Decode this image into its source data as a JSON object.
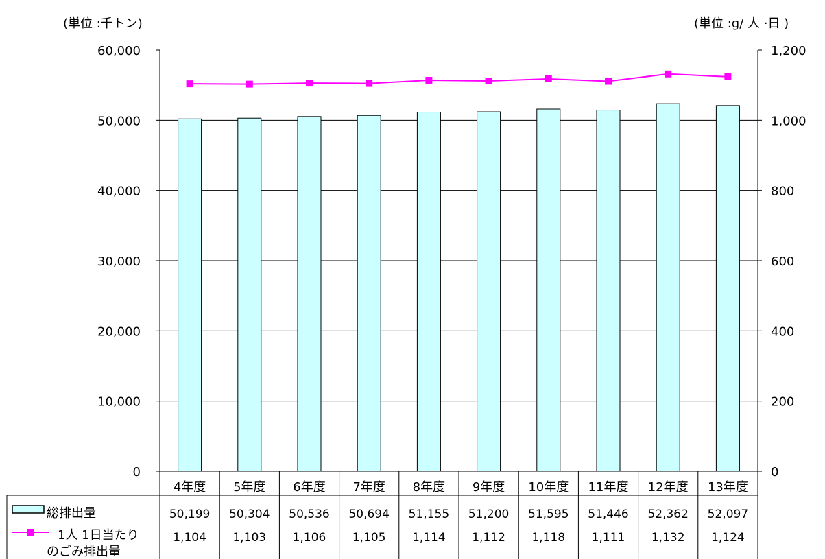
{
  "units": {
    "left": "(単位 :千トン)",
    "right": "(単位 :g/ 人 ·日 )"
  },
  "colors": {
    "bar_fill": "#CCFFFF",
    "bar_stroke": "#000000",
    "line_color": "#FF00FF",
    "grid": "#000000"
  },
  "chart_data": {
    "type": "bar",
    "categories": [
      "4年度",
      "5年度",
      "6年度",
      "7年度",
      "8年度",
      "9年度",
      "10年度",
      "11年度",
      "12年度",
      "13年度"
    ],
    "series": [
      {
        "name": "総排出量",
        "type": "bar",
        "axis": "left",
        "values": [
          50199,
          50304,
          50536,
          50694,
          51155,
          51200,
          51595,
          51446,
          52362,
          52097
        ],
        "labels": [
          "50,199",
          "50,304",
          "50,536",
          "50,694",
          "51,155",
          "51,200",
          "51,595",
          "51,446",
          "52,362",
          "52,097"
        ]
      },
      {
        "name": "1人 1日当たりのごみ排出量",
        "type": "line",
        "axis": "right",
        "values": [
          1104,
          1103,
          1106,
          1105,
          1114,
          1112,
          1118,
          1111,
          1132,
          1124
        ],
        "labels": [
          "1,104",
          "1,103",
          "1,106",
          "1,105",
          "1,114",
          "1,112",
          "1,118",
          "1,111",
          "1,132",
          "1,124"
        ]
      }
    ],
    "y_left": {
      "ylim": [
        0,
        60000
      ],
      "ticks": [
        0,
        10000,
        20000,
        30000,
        40000,
        50000,
        60000
      ],
      "tick_labels": [
        "0",
        "10,000",
        "20,000",
        "30,000",
        "40,000",
        "50,000",
        "60,000"
      ]
    },
    "y_right": {
      "ylim": [
        0,
        1200
      ],
      "ticks": [
        0,
        200,
        400,
        600,
        800,
        1000,
        1200
      ],
      "tick_labels": [
        "0",
        "200",
        "400",
        "600",
        "800",
        "1,000",
        "1,200"
      ]
    },
    "grid": true,
    "legend": "data-table"
  }
}
